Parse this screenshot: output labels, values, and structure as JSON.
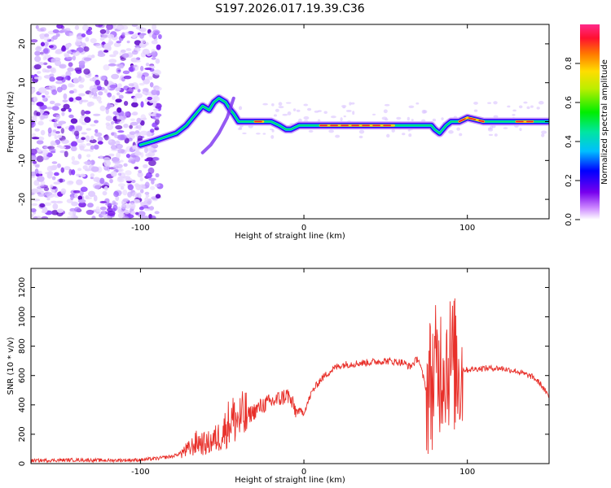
{
  "title": "S197.2026.017.19.39.C36",
  "colors": {
    "snr_line": "#e8302a",
    "axis": "#000000",
    "background": "#ffffff"
  },
  "chart_data": [
    {
      "type": "heatmap",
      "name": "spectrogram",
      "xlabel": "Height of straight line (km)",
      "ylabel": "Frequency (Hz)",
      "xlim": [
        -167,
        150
      ],
      "ylim": [
        -25,
        25
      ],
      "xticks": [
        -100,
        0,
        100
      ],
      "yticks": [
        -20,
        -10,
        0,
        10,
        20
      ],
      "ridge": {
        "x": [
          -100,
          -92,
          -85,
          -78,
          -72,
          -66,
          -62,
          -58,
          -55,
          -52,
          -48,
          -45,
          -43,
          -40,
          -35,
          -30,
          -25,
          -20,
          -15,
          -11,
          -8,
          -3,
          0,
          10,
          20,
          30,
          40,
          50,
          55,
          60,
          65,
          70,
          74,
          78,
          80,
          83,
          87,
          90,
          95,
          100,
          110,
          120,
          130,
          140,
          150
        ],
        "y": [
          -6,
          -5,
          -4,
          -3,
          -1,
          2,
          4,
          3,
          5,
          6,
          5,
          3,
          2,
          0,
          0,
          0,
          0,
          0,
          -1,
          -2,
          -2,
          -1,
          -1,
          -1,
          -1,
          -1,
          -1,
          -1,
          -1,
          -1,
          -1,
          -1,
          -1,
          -1,
          -2,
          -3,
          -1,
          0,
          0,
          1,
          0,
          0,
          0,
          0,
          0
        ]
      },
      "colorbar": {
        "label": "Normalized spectral amplitude",
        "range": [
          0.0,
          1.0
        ],
        "ticks": [
          "0.0",
          "0.2",
          "0.4",
          "0.6",
          "0.8"
        ],
        "tick_values": [
          0.0,
          0.2,
          0.4,
          0.6,
          0.8
        ]
      }
    },
    {
      "type": "line",
      "name": "snr",
      "xlabel": "Height of straight line (km)",
      "ylabel": "SNR (10 * v/v)",
      "xlim": [
        -167,
        150
      ],
      "ylim": [
        0,
        1330
      ],
      "xticks": [
        -100,
        0,
        100
      ],
      "yticks": [
        0,
        200,
        400,
        600,
        800,
        1000,
        1200
      ],
      "series": [
        {
          "name": "SNR",
          "x": [
            -167,
            -140,
            -120,
            -100,
            -90,
            -80,
            -70,
            -65,
            -60,
            -55,
            -50,
            -45,
            -40,
            -35,
            -30,
            -25,
            -20,
            -15,
            -10,
            -5,
            0,
            5,
            10,
            15,
            20,
            25,
            30,
            40,
            50,
            60,
            65,
            70,
            75,
            80,
            85,
            90,
            95,
            100,
            110,
            120,
            130,
            140,
            145,
            150
          ],
          "y": [
            20,
            25,
            22,
            25,
            35,
            50,
            100,
            150,
            130,
            160,
            200,
            300,
            300,
            320,
            360,
            400,
            420,
            440,
            470,
            360,
            350,
            490,
            570,
            620,
            660,
            675,
            680,
            690,
            700,
            690,
            660,
            720,
            500,
            600,
            700,
            700,
            640,
            640,
            650,
            650,
            630,
            590,
            540,
            450
          ]
        }
      ]
    }
  ]
}
